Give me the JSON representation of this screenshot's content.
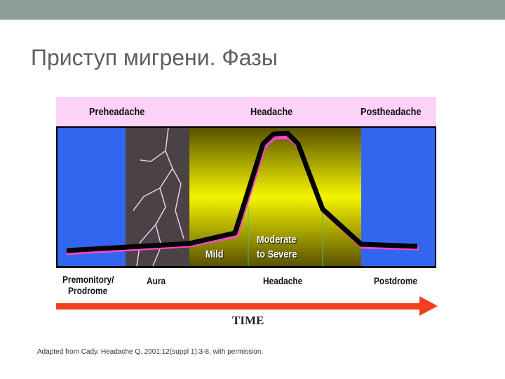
{
  "slide": {
    "title": "Приступ мигрени. Фазы"
  },
  "diagram": {
    "top_phases": [
      "Preheadache",
      "Headache",
      "Postheadache"
    ],
    "severity_labels": {
      "mild": "Mild",
      "moderate": "Moderate",
      "severe": "to Severe"
    },
    "bottom_phases": {
      "prodrome_1": "Premonitory/",
      "prodrome_2": "Prodrome",
      "aura": "Aura",
      "headache": "Headache",
      "postdrome": "Postdrome"
    },
    "axis_label": "TIME",
    "colors": {
      "header_band": "#fcd2f6",
      "blue": "#3366ee",
      "yellow": "#f0f000",
      "curve": "#000000",
      "curve_shadow": "#ff44cc",
      "arrow": "#f04020"
    }
  },
  "citation": "Adapted from Cady. Headache Q. 2001;12(suppl 1):3-8, with permission."
}
